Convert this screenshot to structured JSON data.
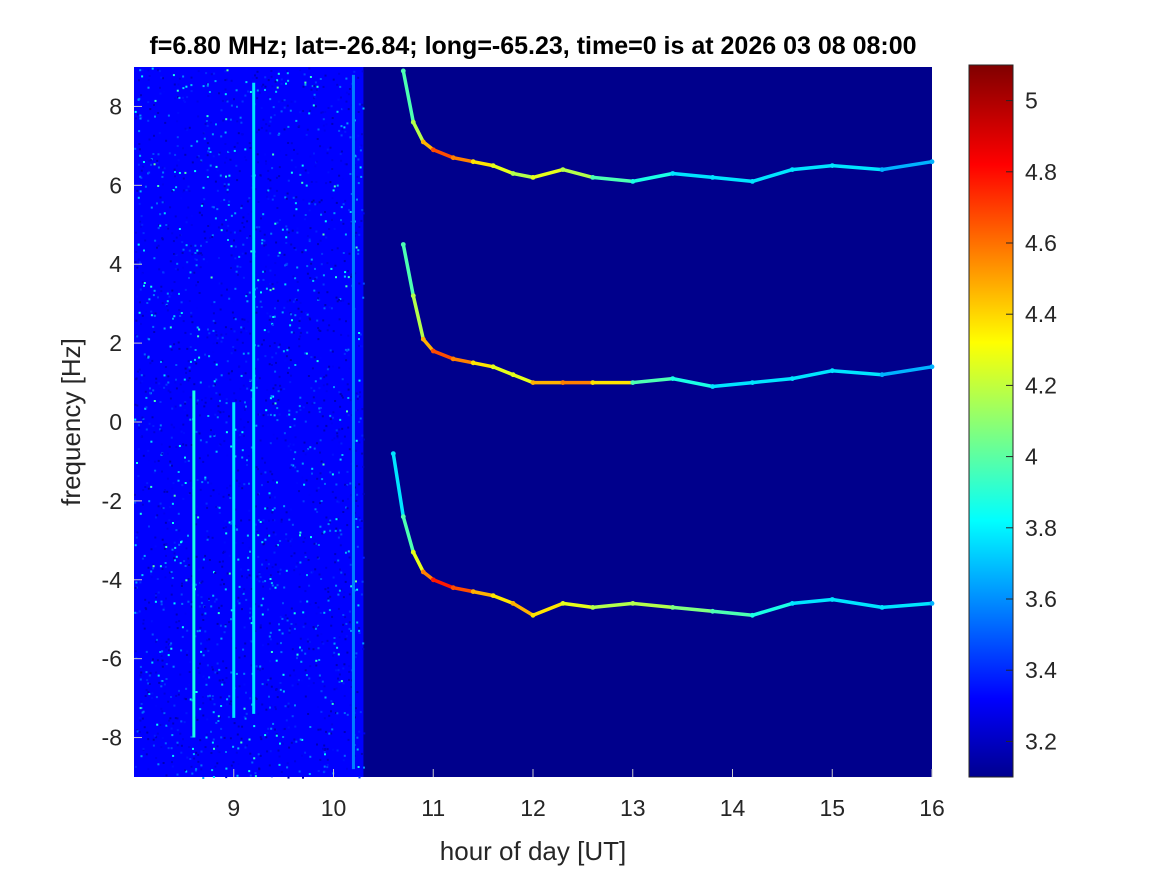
{
  "chart_data": {
    "type": "heatmap",
    "title": "f=6.80 MHz;  lat=-26.84; long=-65.23, time=0 is at 2026 03 08 08:00",
    "xlabel": "hour of day [UT]",
    "ylabel": "frequency [Hz]",
    "xlim": [
      8.0,
      16.0
    ],
    "ylim": [
      -9.0,
      9.0
    ],
    "x_ticks": [
      9,
      10,
      11,
      12,
      13,
      14,
      15,
      16
    ],
    "x_tick_labels": [
      "9",
      "10",
      "11",
      "12",
      "13",
      "14",
      "15",
      "16"
    ],
    "y_ticks": [
      8,
      6,
      4,
      2,
      0,
      -2,
      -4,
      -6,
      -8
    ],
    "y_tick_labels": [
      "8",
      "6",
      "4",
      "2",
      "0",
      "-2",
      "-4",
      "-6",
      "-8"
    ],
    "colorbar": {
      "colormap": "jet",
      "clim": [
        3.1,
        5.1
      ],
      "ticks": [
        5,
        4.8,
        4.6,
        4.4,
        4.2,
        4,
        3.8,
        3.6,
        3.4,
        3.2
      ],
      "tick_labels": [
        "5",
        "4.8",
        "4.6",
        "4.4",
        "4.2",
        "4",
        "3.8",
        "3.6",
        "3.4",
        "3.2"
      ]
    },
    "noise_region": {
      "x_range": [
        8.0,
        10.3
      ],
      "level": 3.35
    },
    "vertical_streaks": [
      {
        "x": 8.6,
        "y_range": [
          -8.0,
          0.8
        ],
        "level": 3.9
      },
      {
        "x": 9.0,
        "y_range": [
          -7.5,
          0.5
        ],
        "level": 3.8
      },
      {
        "x": 9.2,
        "y_range": [
          -7.4,
          8.6
        ],
        "level": 3.8
      },
      {
        "x": 10.2,
        "y_range": [
          -8.8,
          8.8
        ],
        "level": 3.6
      }
    ],
    "series": [
      {
        "name": "",
        "x": [
          10.7,
          10.8,
          10.9,
          11.0,
          11.2,
          11.4,
          11.6,
          11.8,
          12.0,
          12.3,
          12.6,
          13.0,
          13.4,
          13.8,
          14.2,
          14.6,
          15.0,
          15.5,
          16.0
        ],
        "y": [
          8.9,
          7.6,
          7.1,
          6.9,
          6.7,
          6.6,
          6.5,
          6.3,
          6.2,
          6.4,
          6.2,
          6.1,
          6.3,
          6.2,
          6.1,
          6.4,
          6.5,
          6.4,
          6.6
        ],
        "level": [
          4.0,
          4.2,
          4.5,
          4.7,
          4.6,
          4.4,
          4.3,
          4.2,
          4.3,
          4.2,
          4.0,
          3.9,
          3.8,
          3.8,
          3.8,
          3.8,
          3.8,
          3.7,
          3.7
        ]
      },
      {
        "name": "",
        "x": [
          10.7,
          10.8,
          10.9,
          11.0,
          11.2,
          11.4,
          11.6,
          11.8,
          12.0,
          12.3,
          12.6,
          13.0,
          13.4,
          13.8,
          14.2,
          14.6,
          15.0,
          15.5,
          16.0
        ],
        "y": [
          4.5,
          3.2,
          2.1,
          1.8,
          1.6,
          1.5,
          1.4,
          1.2,
          1.0,
          1.0,
          1.0,
          1.0,
          1.1,
          0.9,
          1.0,
          1.1,
          1.3,
          1.2,
          1.4
        ],
        "level": [
          4.0,
          4.2,
          4.5,
          4.7,
          4.6,
          4.4,
          4.3,
          4.3,
          4.5,
          4.6,
          4.4,
          4.0,
          3.9,
          3.8,
          3.8,
          3.8,
          3.8,
          3.7,
          3.7
        ]
      },
      {
        "name": "",
        "x": [
          10.6,
          10.7,
          10.8,
          10.9,
          11.0,
          11.2,
          11.4,
          11.6,
          11.8,
          12.0,
          12.3,
          12.6,
          13.0,
          13.4,
          13.8,
          14.2,
          14.6,
          15.0,
          15.5,
          16.0
        ],
        "y": [
          -0.8,
          -2.4,
          -3.3,
          -3.8,
          -4.0,
          -4.2,
          -4.3,
          -4.4,
          -4.6,
          -4.9,
          -4.6,
          -4.7,
          -4.6,
          -4.7,
          -4.8,
          -4.9,
          -4.6,
          -4.5,
          -4.7,
          -4.6
        ],
        "level": [
          3.8,
          4.0,
          4.3,
          4.6,
          4.8,
          4.7,
          4.5,
          4.4,
          4.5,
          4.4,
          4.3,
          4.2,
          4.2,
          4.1,
          4.0,
          3.9,
          3.8,
          3.8,
          3.8,
          3.7
        ]
      }
    ]
  }
}
